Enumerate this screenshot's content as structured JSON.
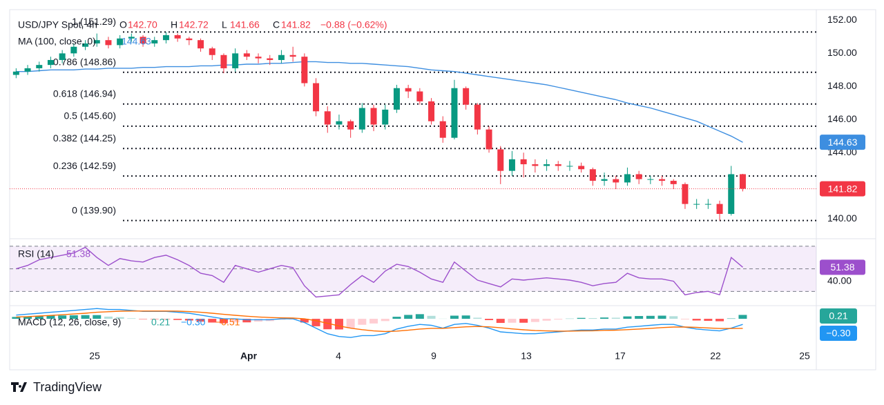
{
  "chart_data": {
    "type": "candlestick",
    "header": {
      "symbol": "USD/JPY Spot, 4h",
      "ohlc": [
        {
          "k": "O",
          "v": "142.70"
        },
        {
          "k": "H",
          "v": "142.72"
        },
        {
          "k": "L",
          "v": "141.66"
        },
        {
          "k": "C",
          "v": "141.82"
        }
      ],
      "change": "−0.88 (−0.62%)"
    },
    "ma": {
      "name": "MA (100, close, 0)",
      "last": "144.63",
      "color": "#3d8ee0",
      "values": [
        148.9,
        148.9,
        148.95,
        149.0,
        149.0,
        149.0,
        149.05,
        149.05,
        149.1,
        149.1,
        149.1,
        149.15,
        149.15,
        149.2,
        149.2,
        149.2,
        149.25,
        149.25,
        149.3,
        149.3,
        149.35,
        149.35,
        149.4,
        149.4,
        149.45,
        149.5,
        149.5,
        149.45,
        149.45,
        149.4,
        149.4,
        149.35,
        149.3,
        149.25,
        149.2,
        149.1,
        149.0,
        148.95,
        148.9,
        148.8,
        148.7,
        148.6,
        148.5,
        148.4,
        148.3,
        148.2,
        148.1,
        147.95,
        147.8,
        147.65,
        147.5,
        147.35,
        147.2,
        147.0,
        146.85,
        146.7,
        146.5,
        146.3,
        146.1,
        145.9,
        145.6,
        145.3,
        145.0,
        144.63
      ]
    },
    "up_color": "#089981",
    "down_color": "#f23645",
    "open": [
      148.7,
      148.9,
      149.1,
      149.3,
      149.6,
      150.0,
      150.4,
      150.6,
      150.8,
      150.5,
      150.9,
      151.0,
      150.6,
      150.8,
      151.1,
      150.9,
      150.8,
      150.3,
      149.9,
      149.1,
      150.0,
      149.8,
      149.7,
      149.6,
      149.9,
      149.8,
      148.2,
      146.5,
      145.7,
      145.9,
      145.4,
      146.7,
      145.7,
      146.6,
      147.9,
      147.7,
      147.1,
      145.9,
      144.9,
      147.9,
      146.9,
      145.4,
      144.2,
      142.9,
      143.6,
      143.3,
      143.2,
      143.3,
      143.2,
      143.2,
      143.0,
      142.3,
      142.4,
      142.2,
      142.7,
      142.4,
      142.4,
      142.3,
      142.1,
      140.9,
      140.9,
      140.9,
      140.3,
      142.7
    ],
    "high": [
      149.1,
      149.3,
      149.5,
      149.8,
      150.2,
      150.6,
      150.8,
      151.2,
      151.0,
      151.1,
      151.2,
      151.1,
      151.0,
      151.29,
      151.2,
      151.0,
      150.9,
      150.4,
      150.0,
      150.3,
      150.2,
      150.0,
      149.9,
      150.2,
      150.4,
      150.0,
      148.5,
      146.8,
      146.3,
      146.0,
      147.0,
      146.9,
      146.9,
      148.1,
      148.1,
      147.9,
      147.3,
      146.2,
      148.4,
      148.0,
      147.0,
      145.6,
      144.4,
      144.1,
      144.0,
      143.6,
      143.6,
      143.5,
      143.5,
      143.4,
      143.1,
      142.8,
      142.6,
      143.1,
      142.9,
      142.6,
      142.6,
      142.4,
      142.2,
      141.2,
      141.2,
      141.1,
      143.2,
      142.72
    ],
    "low": [
      148.5,
      148.7,
      148.9,
      149.1,
      149.4,
      149.8,
      150.2,
      150.4,
      150.3,
      150.3,
      150.7,
      150.4,
      150.4,
      150.6,
      150.7,
      150.5,
      150.1,
      149.6,
      148.8,
      148.9,
      149.6,
      149.4,
      149.3,
      149.4,
      149.5,
      148.0,
      146.2,
      145.2,
      145.4,
      144.9,
      145.2,
      145.3,
      145.4,
      146.4,
      147.3,
      146.9,
      145.7,
      144.6,
      144.8,
      146.6,
      145.1,
      144.0,
      142.1,
      142.6,
      142.5,
      142.8,
      142.9,
      142.9,
      142.9,
      142.8,
      142.0,
      142.0,
      141.8,
      142.0,
      142.1,
      142.1,
      142.0,
      141.8,
      140.6,
      140.6,
      140.6,
      139.9,
      140.2,
      141.66
    ],
    "close": [
      148.9,
      149.1,
      149.3,
      149.6,
      150.0,
      150.4,
      150.6,
      150.8,
      150.5,
      150.9,
      151.0,
      150.6,
      150.8,
      151.1,
      150.9,
      150.8,
      150.3,
      149.9,
      149.1,
      150.0,
      149.8,
      149.7,
      149.6,
      149.9,
      149.8,
      148.2,
      146.5,
      145.7,
      145.9,
      145.4,
      146.7,
      145.7,
      146.6,
      147.9,
      147.7,
      147.1,
      145.9,
      144.9,
      147.9,
      146.9,
      145.4,
      144.2,
      142.9,
      143.6,
      143.3,
      143.2,
      143.3,
      143.2,
      143.2,
      143.0,
      142.3,
      142.4,
      142.2,
      142.7,
      142.4,
      142.4,
      142.3,
      142.1,
      140.9,
      140.9,
      140.9,
      140.3,
      142.7,
      141.82
    ],
    "ylim": [
      138.8,
      152.6
    ],
    "yticks": [
      {
        "value": 140,
        "label": "140.00"
      },
      {
        "value": 144,
        "label": "144.00"
      },
      {
        "value": 146,
        "label": "146.00"
      },
      {
        "value": 148,
        "label": "148.00"
      },
      {
        "value": 150,
        "label": "150.00"
      },
      {
        "value": 152,
        "label": "152.00"
      }
    ],
    "fib": {
      "color": "#131722",
      "levels": [
        {
          "label": "1 (151.29)",
          "value": 151.29
        },
        {
          "label": "0.786 (148.86)",
          "value": 148.86
        },
        {
          "label": "0.618 (146.94)",
          "value": 146.94
        },
        {
          "label": "0.5 (145.60)",
          "value": 145.6
        },
        {
          "label": "0.382 (144.25)",
          "value": 144.25
        },
        {
          "label": "0.236 (142.59)",
          "value": 142.59
        },
        {
          "label": "0 (139.90)",
          "value": 139.9
        }
      ]
    },
    "x_labels": [
      "25",
      "Apr",
      "4",
      "9",
      "13",
      "17",
      "22",
      "25"
    ],
    "rsi": {
      "name": "RSI (14)",
      "last": "51.38",
      "color": "#9c4fcc",
      "ylim": [
        18,
        76
      ],
      "levels": [
        30,
        50,
        70
      ],
      "yticks": [
        {
          "value": 40,
          "label": "40.00"
        }
      ],
      "values": [
        50,
        53,
        58,
        60,
        62,
        64,
        69,
        60,
        53,
        59,
        57,
        56,
        60,
        62,
        58,
        53,
        46,
        44,
        38,
        53,
        50,
        47,
        50,
        53,
        51,
        35,
        25,
        26,
        27,
        36,
        44,
        38,
        48,
        54,
        52,
        47,
        41,
        38,
        56,
        48,
        40,
        37,
        34,
        41,
        40,
        41,
        42,
        41,
        40,
        38,
        35,
        37,
        38,
        46,
        42,
        41,
        41,
        39,
        27,
        29,
        30,
        27,
        60,
        51.38
      ]
    },
    "macd": {
      "name": "MACD (12, 26, close, 9)",
      "legend": [
        "0.21",
        "−0.30",
        "−0.51"
      ],
      "ylim": [
        -2.7,
        0.67
      ],
      "macd_color": "#2196f3",
      "signal_color": "#ff6d00",
      "hist_colors": [
        "#26a69a",
        "#b2dfdb",
        "#ff5252",
        "#ffcdd2"
      ],
      "macd_values": [
        0.2,
        0.25,
        0.3,
        0.35,
        0.4,
        0.45,
        0.5,
        0.55,
        0.5,
        0.5,
        0.45,
        0.4,
        0.4,
        0.4,
        0.35,
        0.3,
        0.2,
        0.1,
        0.0,
        0.0,
        -0.05,
        -0.05,
        -0.05,
        0.0,
        0.0,
        -0.2,
        -0.5,
        -0.8,
        -0.95,
        -1.0,
        -0.9,
        -0.9,
        -0.8,
        -0.55,
        -0.4,
        -0.3,
        -0.35,
        -0.5,
        -0.3,
        -0.25,
        -0.35,
        -0.5,
        -0.7,
        -0.75,
        -0.8,
        -0.8,
        -0.75,
        -0.7,
        -0.65,
        -0.6,
        -0.6,
        -0.55,
        -0.55,
        -0.45,
        -0.4,
        -0.35,
        -0.3,
        -0.3,
        -0.45,
        -0.55,
        -0.6,
        -0.65,
        -0.5,
        -0.3
      ],
      "signal_values": [
        0.1,
        0.12,
        0.15,
        0.18,
        0.22,
        0.26,
        0.3,
        0.35,
        0.38,
        0.41,
        0.42,
        0.42,
        0.42,
        0.42,
        0.41,
        0.39,
        0.35,
        0.3,
        0.24,
        0.19,
        0.14,
        0.1,
        0.07,
        0.05,
        0.04,
        0.0,
        -0.1,
        -0.24,
        -0.38,
        -0.5,
        -0.58,
        -0.65,
        -0.68,
        -0.66,
        -0.61,
        -0.55,
        -0.51,
        -0.51,
        -0.47,
        -0.43,
        -0.41,
        -0.43,
        -0.48,
        -0.54,
        -0.59,
        -0.63,
        -0.65,
        -0.66,
        -0.66,
        -0.65,
        -0.64,
        -0.62,
        -0.61,
        -0.58,
        -0.55,
        -0.51,
        -0.47,
        -0.44,
        -0.44,
        -0.46,
        -0.49,
        -0.52,
        -0.52,
        -0.51
      ],
      "hist_values": [
        0.1,
        0.13,
        0.15,
        0.17,
        0.18,
        0.19,
        0.2,
        0.2,
        0.12,
        0.09,
        0.03,
        -0.02,
        -0.02,
        -0.02,
        -0.06,
        -0.09,
        -0.15,
        -0.2,
        -0.24,
        -0.19,
        -0.19,
        -0.15,
        -0.12,
        -0.05,
        -0.04,
        -0.2,
        -0.4,
        -0.56,
        -0.57,
        -0.5,
        -0.32,
        -0.25,
        -0.12,
        0.11,
        0.21,
        0.25,
        0.16,
        0.01,
        0.17,
        0.18,
        0.06,
        -0.07,
        -0.22,
        -0.21,
        -0.21,
        -0.17,
        -0.1,
        -0.04,
        0.01,
        0.05,
        0.04,
        0.07,
        0.06,
        0.13,
        0.15,
        0.16,
        0.17,
        0.14,
        -0.01,
        -0.09,
        -0.11,
        -0.13,
        0.02,
        0.21
      ]
    },
    "brand": "TradingView"
  }
}
